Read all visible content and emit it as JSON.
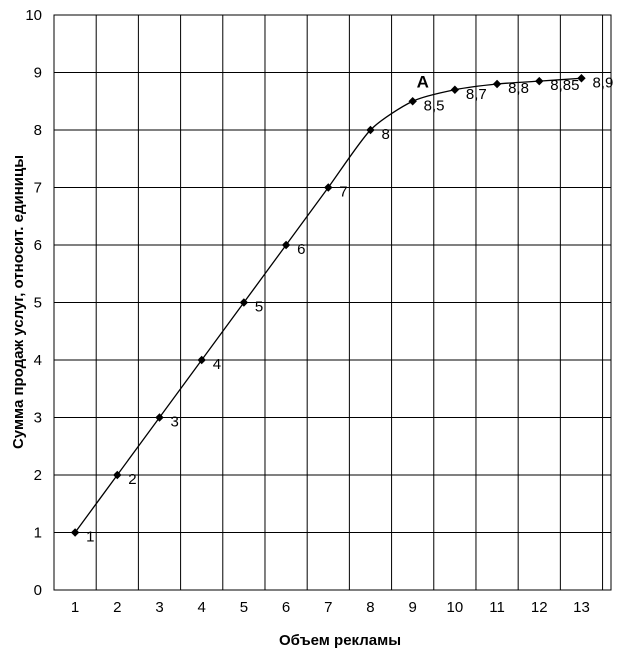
{
  "chart_data": {
    "type": "line",
    "title": "",
    "xlabel": "Объем рекламы",
    "ylabel": "Сумма продаж услуг, относит. единицы",
    "x_ticks": [
      "1",
      "2",
      "3",
      "4",
      "5",
      "6",
      "7",
      "8",
      "9",
      "10",
      "11",
      "12",
      "13"
    ],
    "y_ticks": [
      "0",
      "1",
      "2",
      "3",
      "4",
      "5",
      "6",
      "7",
      "8",
      "9",
      "10"
    ],
    "xlim": [
      0.5,
      13.7
    ],
    "ylim": [
      0,
      10
    ],
    "grid": true,
    "legend": "none",
    "series": [
      {
        "color": "#000000",
        "points": [
          {
            "x": 1,
            "y": 1,
            "label": "1"
          },
          {
            "x": 2,
            "y": 2,
            "label": "2"
          },
          {
            "x": 3,
            "y": 3,
            "label": "3"
          },
          {
            "x": 4,
            "y": 4,
            "label": "4"
          },
          {
            "x": 5,
            "y": 5,
            "label": "5"
          },
          {
            "x": 6,
            "y": 6,
            "label": "6"
          },
          {
            "x": 7,
            "y": 7,
            "label": "7"
          },
          {
            "x": 8,
            "y": 8,
            "label": "8"
          },
          {
            "x": 9,
            "y": 8.5,
            "label": "8,5"
          },
          {
            "x": 10,
            "y": 8.7,
            "label": "8,7"
          },
          {
            "x": 11,
            "y": 8.8,
            "label": "8,8"
          },
          {
            "x": 12,
            "y": 8.85,
            "label": "8,85"
          },
          {
            "x": 13,
            "y": 8.9,
            "label": "8,9"
          }
        ]
      }
    ],
    "annotations": [
      {
        "text": "A",
        "x": 9,
        "y": 8.5
      }
    ]
  }
}
